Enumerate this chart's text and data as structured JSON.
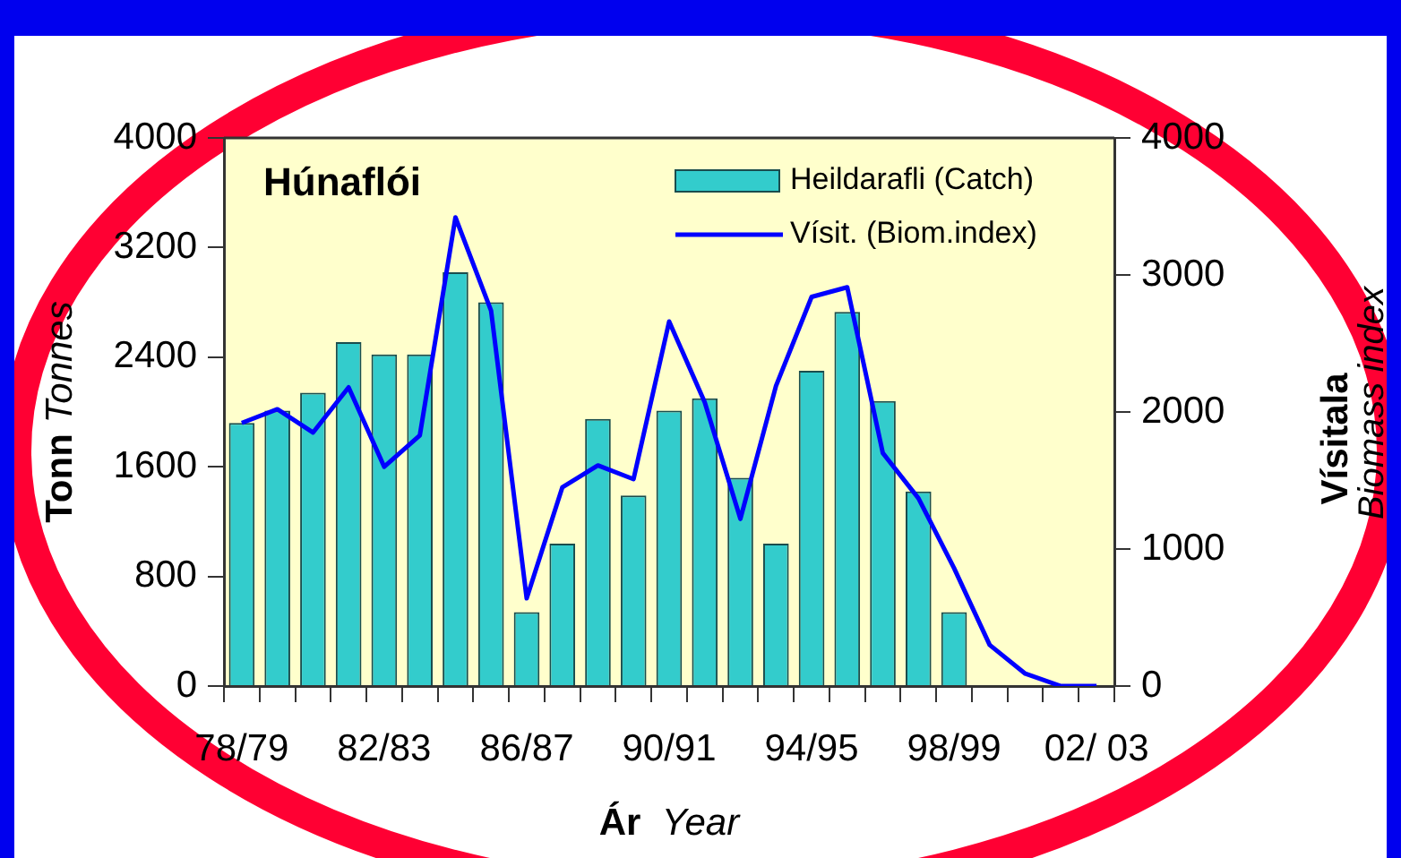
{
  "chart_data": {
    "type": "bar",
    "title": "Húnaflói",
    "xlabel": "Ár Year",
    "ylabel": "Tonn Tonnes",
    "y2label": "Vísitala Biomass index",
    "categories": [
      "78/79",
      null,
      null,
      null,
      "82/83",
      null,
      null,
      null,
      "86/87",
      null,
      null,
      null,
      "90/91",
      null,
      null,
      null,
      "94/95",
      null,
      null,
      null,
      "98/99",
      null,
      null,
      null,
      "02/ 03"
    ],
    "series": [
      {
        "name": "Heildarafli (Catch)",
        "color": "#33cccc",
        "values": [
          1920,
          2010,
          2140,
          2510,
          2420,
          2420,
          3020,
          2800,
          540,
          1040,
          1950,
          1390,
          2010,
          2100,
          1520,
          1040,
          2300,
          2730,
          2080,
          1420,
          540,
          null,
          null,
          null,
          null
        ]
      },
      {
        "name": "Vísit. (Biom.index)",
        "type": "line",
        "axis": "y2",
        "color": "#0000ff",
        "values": [
          1920,
          2020,
          1850,
          2180,
          1600,
          1830,
          3420,
          2740,
          640,
          1450,
          1610,
          1510,
          2660,
          2070,
          1220,
          2190,
          2840,
          2910,
          1700,
          1370,
          860,
          300,
          90,
          0,
          0
        ]
      }
    ],
    "ylim": [
      0,
      4000
    ],
    "yticks": [
      0,
      800,
      1600,
      2400,
      3200,
      4000
    ],
    "y2lim": [
      0,
      4000
    ],
    "y2ticks": [
      0,
      1000,
      2000,
      3000,
      4000
    ],
    "grid": false,
    "legend": "top right",
    "marker": "none",
    "line_style": "solid"
  }
}
